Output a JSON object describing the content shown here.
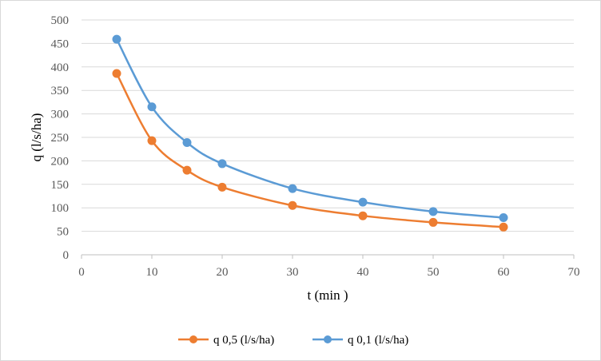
{
  "chart_data": {
    "type": "scatter",
    "title": "",
    "xlabel": "t (min )",
    "ylabel": "q (l/s/ha)",
    "xlim": [
      0,
      70
    ],
    "ylim": [
      0,
      500
    ],
    "xticks": [
      0,
      10,
      20,
      30,
      40,
      50,
      60,
      70
    ],
    "yticks": [
      0,
      50,
      100,
      150,
      200,
      250,
      300,
      350,
      400,
      450,
      500
    ],
    "grid": "horizontal",
    "smooth": true,
    "legend_position": "bottom",
    "series": [
      {
        "name": "q 0,5 (l/s/ha)",
        "color": "#ed7d31",
        "x": [
          5,
          10,
          15,
          20,
          30,
          40,
          50,
          60
        ],
        "y": [
          386,
          243,
          180,
          144,
          105,
          83,
          69,
          59
        ]
      },
      {
        "name": "q 0,1 (l/s/ha)",
        "color": "#5b9bd5",
        "x": [
          5,
          10,
          15,
          20,
          30,
          40,
          50,
          60
        ],
        "y": [
          459,
          315,
          239,
          194,
          141,
          112,
          92,
          79
        ]
      }
    ]
  }
}
